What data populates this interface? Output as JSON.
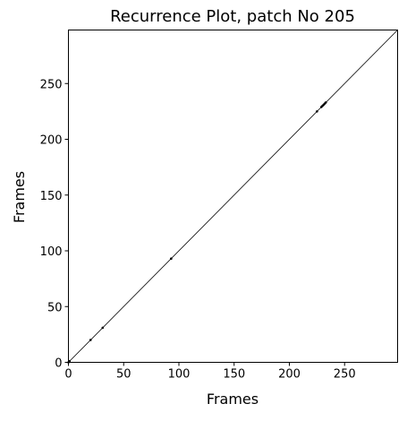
{
  "chart_data": {
    "type": "scatter",
    "title": "Recurrence Plot, patch No 205",
    "xlabel": "Frames",
    "ylabel": "Frames",
    "xlim": [
      0,
      298
    ],
    "ylim": [
      0,
      298
    ],
    "x_ticks": [
      0,
      50,
      100,
      150,
      200,
      250
    ],
    "y_ticks": [
      0,
      50,
      100,
      150,
      200,
      250
    ],
    "grid": false,
    "diagonal": {
      "from": 0,
      "to": 298
    },
    "points": [
      {
        "x": 0,
        "y": 0
      },
      {
        "x": 1,
        "y": 1
      },
      {
        "x": 20,
        "y": 20
      },
      {
        "x": 31,
        "y": 31
      },
      {
        "x": 93,
        "y": 93
      },
      {
        "x": 225,
        "y": 225
      },
      {
        "x": 229,
        "y": 229
      },
      {
        "x": 230,
        "y": 230
      },
      {
        "x": 231,
        "y": 231
      },
      {
        "x": 232,
        "y": 232
      },
      {
        "x": 233,
        "y": 233
      }
    ],
    "colors": {
      "mark": "#000000",
      "frame": "#000000",
      "background": "#ffffff"
    }
  }
}
